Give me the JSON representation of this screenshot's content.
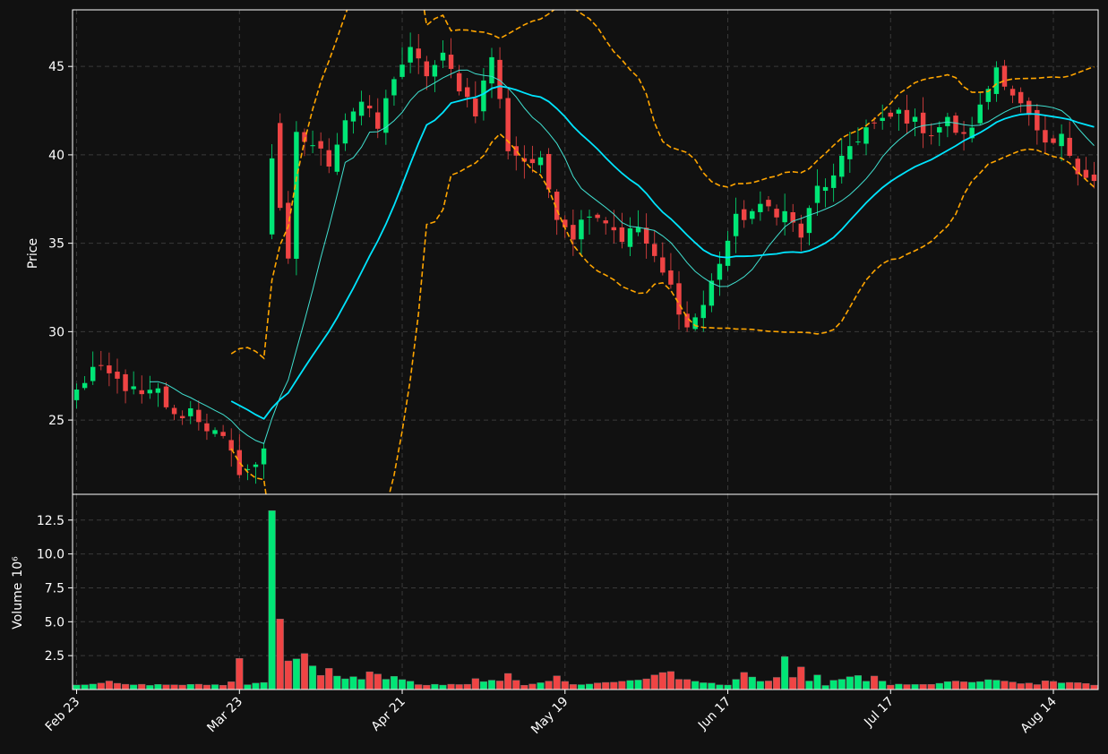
{
  "chart_data": {
    "type": "candlestick",
    "colors": {
      "background": "#111111",
      "up": "#00e676",
      "down": "#ef4444",
      "ma_short": "#40e0d0",
      "ma_long": "#00e5ff",
      "bands": "#ffa500",
      "grid": "#3a3a3a",
      "axes": "#ffffff"
    },
    "price_axis": {
      "label": "Price",
      "ylim": [
        20.8,
        48.2
      ],
      "ticks": [
        25,
        30,
        35,
        40,
        45
      ]
    },
    "volume_axis": {
      "label": "Volume",
      "exponent_label": "10⁶",
      "ylim": [
        0,
        14.4
      ],
      "ticks": [
        2.5,
        5.0,
        7.5,
        10.0,
        12.5
      ],
      "tick_labels": [
        "2.5",
        "5.0",
        "7.5",
        "10.0",
        "12.5"
      ]
    },
    "x_ticks": [
      {
        "index": 0,
        "label": "Feb 23"
      },
      {
        "index": 20,
        "label": "Mar 23"
      },
      {
        "index": 40,
        "label": "Apr 21"
      },
      {
        "index": 60,
        "label": "May 19"
      },
      {
        "index": 80,
        "label": "Jun 17"
      },
      {
        "index": 100,
        "label": "Jul 17"
      },
      {
        "index": 120,
        "label": "Aug 14"
      }
    ],
    "grid": true,
    "anchors": {
      "close": [
        [
          0,
          26.6
        ],
        [
          2,
          27.9
        ],
        [
          4,
          27.5
        ],
        [
          6,
          26.9
        ],
        [
          8,
          26.3
        ],
        [
          10,
          26.6
        ],
        [
          12,
          25.1
        ],
        [
          14,
          25.6
        ],
        [
          16,
          24.6
        ],
        [
          18,
          23.8
        ],
        [
          20,
          22.2
        ],
        [
          22,
          22.3
        ],
        [
          23,
          23.5
        ],
        [
          24,
          39.5
        ],
        [
          25,
          37.5
        ],
        [
          26,
          33.8
        ],
        [
          27,
          41.0
        ],
        [
          29,
          40.6
        ],
        [
          31,
          39.6
        ],
        [
          33,
          42.1
        ],
        [
          35,
          43.0
        ],
        [
          37,
          41.5
        ],
        [
          39,
          44.5
        ],
        [
          41,
          45.8
        ],
        [
          43,
          44.6
        ],
        [
          45,
          45.5
        ],
        [
          47,
          43.9
        ],
        [
          49,
          42.5
        ],
        [
          51,
          45.6
        ],
        [
          53,
          40.4
        ],
        [
          55,
          39.7
        ],
        [
          57,
          39.5
        ],
        [
          59,
          36.7
        ],
        [
          61,
          35.5
        ],
        [
          63,
          36.9
        ],
        [
          65,
          36.3
        ],
        [
          67,
          35.3
        ],
        [
          69,
          35.9
        ],
        [
          71,
          34.0
        ],
        [
          73,
          32.5
        ],
        [
          75,
          30.2
        ],
        [
          77,
          31.5
        ],
        [
          79,
          34.0
        ],
        [
          81,
          36.3
        ],
        [
          83,
          36.8
        ],
        [
          85,
          37.0
        ],
        [
          87,
          36.7
        ],
        [
          89,
          35.4
        ],
        [
          91,
          38.1
        ],
        [
          93,
          38.6
        ],
        [
          95,
          40.5
        ],
        [
          97,
          41.5
        ],
        [
          99,
          41.8
        ],
        [
          101,
          42.4
        ],
        [
          103,
          41.8
        ],
        [
          105,
          41.3
        ],
        [
          107,
          41.9
        ],
        [
          109,
          40.9
        ],
        [
          111,
          42.6
        ],
        [
          113,
          45.0
        ],
        [
          115,
          43.5
        ],
        [
          117,
          42.0
        ],
        [
          119,
          40.3
        ],
        [
          121,
          40.9
        ],
        [
          123,
          39.3
        ],
        [
          125,
          38.5
        ]
      ],
      "volume": [
        [
          0,
          0.35
        ],
        [
          4,
          0.55
        ],
        [
          6,
          0.35
        ],
        [
          10,
          0.35
        ],
        [
          14,
          0.35
        ],
        [
          18,
          0.35
        ],
        [
          19,
          0.55
        ],
        [
          20,
          2.3
        ],
        [
          21,
          0.35
        ],
        [
          22,
          0.55
        ],
        [
          23,
          0.55
        ],
        [
          24,
          13.2
        ],
        [
          25,
          5.2
        ],
        [
          26,
          2.3
        ],
        [
          27,
          2.5
        ],
        [
          28,
          2.6
        ],
        [
          29,
          1.6
        ],
        [
          30,
          0.95
        ],
        [
          31,
          1.5
        ],
        [
          32,
          0.9
        ],
        [
          35,
          0.85
        ],
        [
          36,
          1.25
        ],
        [
          38,
          0.85
        ],
        [
          39,
          0.95
        ],
        [
          42,
          0.35
        ],
        [
          48,
          0.35
        ],
        [
          49,
          0.75
        ],
        [
          52,
          0.55
        ],
        [
          53,
          1.1
        ],
        [
          55,
          0.35
        ],
        [
          58,
          0.65
        ],
        [
          59,
          0.9
        ],
        [
          61,
          0.35
        ],
        [
          66,
          0.55
        ],
        [
          69,
          0.75
        ],
        [
          71,
          0.95
        ],
        [
          73,
          1.4
        ],
        [
          74,
          0.85
        ],
        [
          76,
          0.55
        ],
        [
          80,
          0.35
        ],
        [
          81,
          0.75
        ],
        [
          82,
          1.1
        ],
        [
          84,
          0.55
        ],
        [
          86,
          0.85
        ],
        [
          87,
          2.45
        ],
        [
          88,
          0.9
        ],
        [
          89,
          1.45
        ],
        [
          90,
          0.55
        ],
        [
          91,
          0.95
        ],
        [
          92,
          0.35
        ],
        [
          94,
          0.85
        ],
        [
          96,
          0.95
        ],
        [
          97,
          0.55
        ],
        [
          98,
          0.95
        ],
        [
          100,
          0.35
        ],
        [
          104,
          0.35
        ],
        [
          107,
          0.55
        ],
        [
          110,
          0.55
        ],
        [
          112,
          0.65
        ],
        [
          115,
          0.55
        ],
        [
          118,
          0.35
        ],
        [
          119,
          0.65
        ],
        [
          121,
          0.55
        ],
        [
          122,
          0.5
        ],
        [
          125,
          0.35
        ]
      ]
    },
    "n_candles": 126,
    "ma_windows": {
      "short": 10,
      "long": 20,
      "bands_window": 20
    }
  }
}
